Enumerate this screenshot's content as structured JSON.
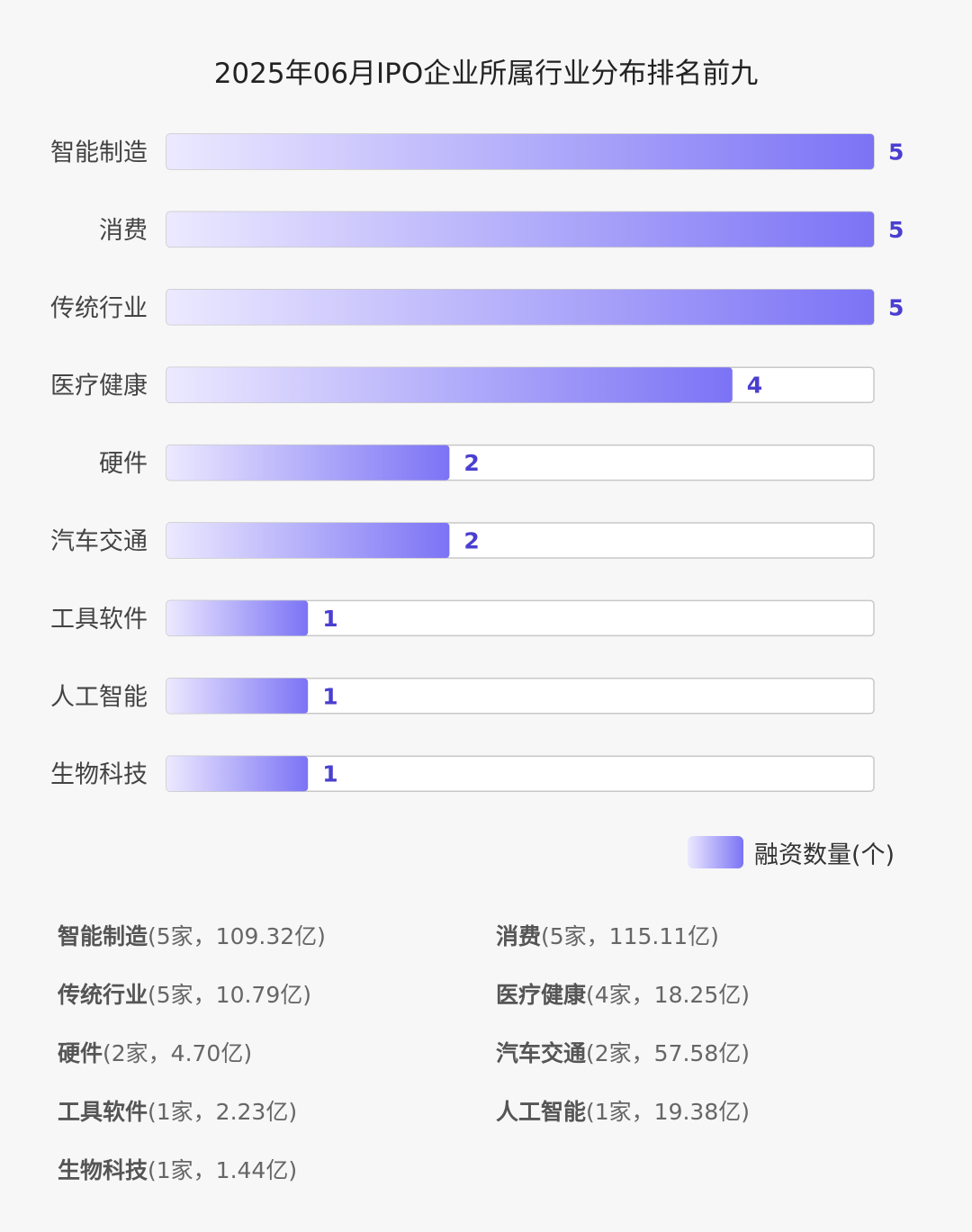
{
  "chart_data": {
    "type": "bar",
    "orientation": "horizontal",
    "title": "2025年06月IPO企业所属行业分布排名前九",
    "categories": [
      "智能制造",
      "消费",
      "传统行业",
      "医疗健康",
      "硬件",
      "汽车交通",
      "工具软件",
      "人工智能",
      "生物科技"
    ],
    "series": [
      {
        "name": "融资数量(个)",
        "values": [
          5,
          5,
          5,
          4,
          2,
          2,
          1,
          1,
          1
        ]
      }
    ],
    "xlim": [
      0,
      5
    ],
    "grid": false,
    "legend": "bottom-right",
    "data_labels": true
  },
  "colors": {
    "bar_start": "#ece9ff",
    "bar_end": "#7b73f5",
    "value_label": "#4a3fd0",
    "track_border": "#c8c8c8"
  },
  "summary": {
    "items": [
      {
        "name": "智能制造",
        "detail": "(5家，109.32亿)"
      },
      {
        "name": "消费",
        "detail": "(5家，115.11亿)"
      },
      {
        "name": "传统行业",
        "detail": "(5家，10.79亿)"
      },
      {
        "name": "医疗健康",
        "detail": "(4家，18.25亿)"
      },
      {
        "name": "硬件",
        "detail": "(2家，4.70亿)"
      },
      {
        "name": "汽车交通",
        "detail": "(2家，57.58亿)"
      },
      {
        "name": "工具软件",
        "detail": "(1家，2.23亿)"
      },
      {
        "name": "人工智能",
        "detail": "(1家，19.38亿)"
      },
      {
        "name": "生物科技",
        "detail": "(1家，1.44亿)"
      }
    ]
  }
}
